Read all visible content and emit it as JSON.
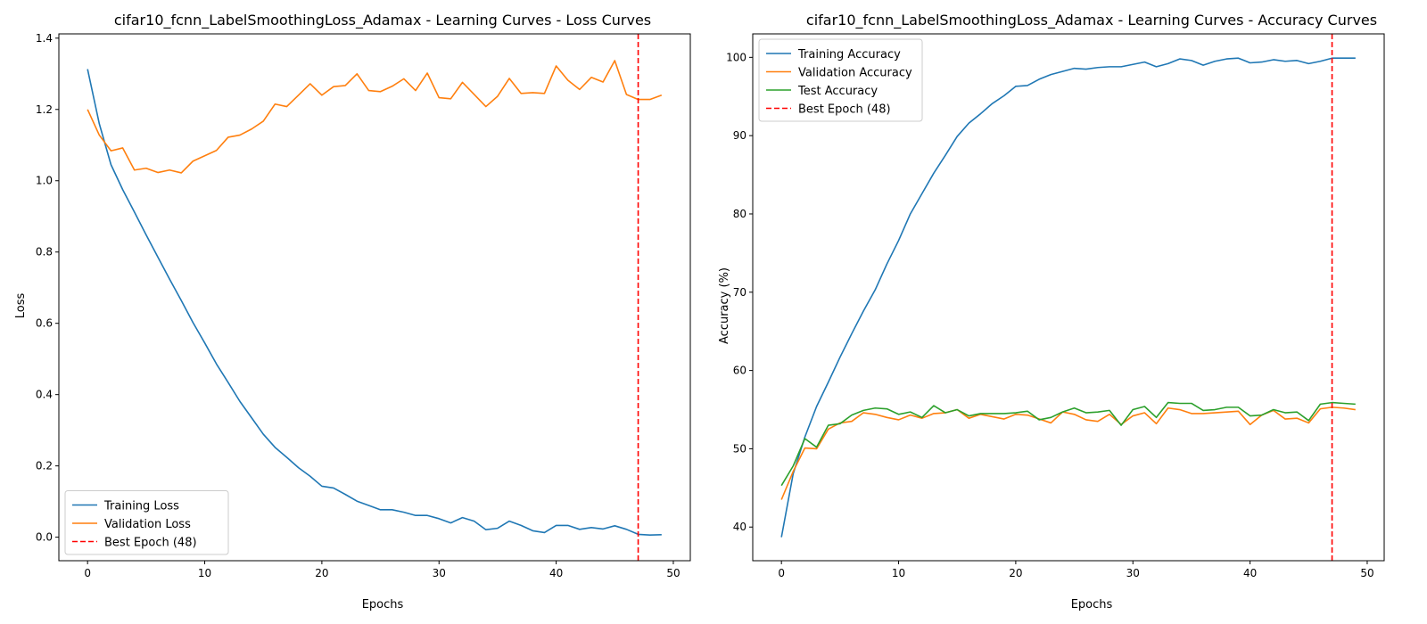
{
  "chart_data": [
    {
      "type": "line",
      "title": "cifar10_fcnn_LabelSmoothingLoss_Adamax - Learning Curves - Loss Curves",
      "xlabel": "Epochs",
      "ylabel": "Loss",
      "xlim": [
        -2.45,
        51.45
      ],
      "ylim": [
        -0.066,
        1.412
      ],
      "xticks": [
        0,
        10,
        20,
        30,
        40,
        50
      ],
      "yticks": [
        0.0,
        0.2,
        0.4,
        0.6,
        0.8,
        1.0,
        1.2,
        1.4
      ],
      "ytick_labels": [
        "0.0",
        "0.2",
        "0.4",
        "0.6",
        "0.8",
        "1.0",
        "1.2",
        "1.4"
      ],
      "grid": false,
      "legend_position": "lower-left",
      "x": [
        0,
        1,
        2,
        3,
        4,
        5,
        6,
        7,
        8,
        9,
        10,
        11,
        12,
        13,
        14,
        15,
        16,
        17,
        18,
        19,
        20,
        21,
        22,
        23,
        24,
        25,
        26,
        27,
        28,
        29,
        30,
        31,
        32,
        33,
        34,
        35,
        36,
        37,
        38,
        39,
        40,
        41,
        42,
        43,
        44,
        45,
        46,
        47,
        48,
        49
      ],
      "series": [
        {
          "name": "Training Loss",
          "color": "#1f77b4",
          "values": [
            1.313,
            1.16,
            1.045,
            0.975,
            0.912,
            0.848,
            0.786,
            0.724,
            0.664,
            0.602,
            0.545,
            0.486,
            0.434,
            0.381,
            0.335,
            0.289,
            0.252,
            0.224,
            0.195,
            0.171,
            0.143,
            0.138,
            0.12,
            0.101,
            0.089,
            0.077,
            0.077,
            0.07,
            0.061,
            0.061,
            0.052,
            0.04,
            0.055,
            0.045,
            0.021,
            0.025,
            0.045,
            0.033,
            0.018,
            0.013,
            0.033,
            0.033,
            0.022,
            0.027,
            0.023,
            0.032,
            0.022,
            0.008,
            0.006,
            0.007
          ]
        },
        {
          "name": "Validation Loss",
          "color": "#ff7f0e",
          "values": [
            1.2,
            1.128,
            1.084,
            1.092,
            1.03,
            1.035,
            1.023,
            1.03,
            1.022,
            1.055,
            1.07,
            1.085,
            1.122,
            1.128,
            1.145,
            1.167,
            1.215,
            1.208,
            1.24,
            1.272,
            1.24,
            1.264,
            1.267,
            1.3,
            1.253,
            1.25,
            1.265,
            1.286,
            1.253,
            1.302,
            1.233,
            1.23,
            1.276,
            1.242,
            1.208,
            1.237,
            1.287,
            1.245,
            1.247,
            1.245,
            1.322,
            1.282,
            1.256,
            1.29,
            1.277,
            1.337,
            1.242,
            1.228,
            1.228,
            1.24
          ]
        }
      ],
      "vline": {
        "name": "Best Epoch (48)",
        "x": 47,
        "color": "#ff0000",
        "style": "dashed"
      }
    },
    {
      "type": "line",
      "title": "cifar10_fcnn_LabelSmoothingLoss_Adamax - Learning Curves - Accuracy Curves",
      "xlabel": "Epochs",
      "ylabel": "Accuracy (%)",
      "xlim": [
        -2.45,
        51.45
      ],
      "ylim": [
        35.7,
        103.0
      ],
      "xticks": [
        0,
        10,
        20,
        30,
        40,
        50
      ],
      "yticks": [
        40,
        50,
        60,
        70,
        80,
        90,
        100
      ],
      "ytick_labels": [
        "40",
        "50",
        "60",
        "70",
        "80",
        "90",
        "100"
      ],
      "grid": false,
      "legend_position": "upper-left",
      "x": [
        0,
        1,
        2,
        3,
        4,
        5,
        6,
        7,
        8,
        9,
        10,
        11,
        12,
        13,
        14,
        15,
        16,
        17,
        18,
        19,
        20,
        21,
        22,
        23,
        24,
        25,
        26,
        27,
        28,
        29,
        30,
        31,
        32,
        33,
        34,
        35,
        36,
        37,
        38,
        39,
        40,
        41,
        42,
        43,
        44,
        45,
        46,
        47,
        48,
        49
      ],
      "series": [
        {
          "name": "Training Accuracy",
          "color": "#1f77b4",
          "values": [
            38.7,
            46.8,
            51.5,
            55.4,
            58.5,
            61.7,
            64.7,
            67.6,
            70.3,
            73.6,
            76.6,
            80.0,
            82.6,
            85.2,
            87.5,
            89.9,
            91.6,
            92.8,
            94.1,
            95.1,
            96.3,
            96.4,
            97.2,
            97.8,
            98.2,
            98.6,
            98.5,
            98.7,
            98.8,
            98.8,
            99.1,
            99.4,
            98.8,
            99.2,
            99.8,
            99.6,
            99.0,
            99.5,
            99.8,
            99.9,
            99.3,
            99.4,
            99.7,
            99.5,
            99.6,
            99.2,
            99.5,
            99.9,
            99.9,
            99.9
          ]
        },
        {
          "name": "Validation Accuracy",
          "color": "#ff7f0e",
          "values": [
            43.5,
            47.1,
            50.1,
            50.0,
            52.5,
            53.3,
            53.5,
            54.6,
            54.4,
            54.0,
            53.7,
            54.3,
            53.9,
            54.5,
            54.6,
            55.0,
            53.9,
            54.4,
            54.1,
            53.8,
            54.4,
            54.3,
            53.8,
            53.3,
            54.7,
            54.4,
            53.7,
            53.5,
            54.4,
            53.1,
            54.2,
            54.6,
            53.2,
            55.2,
            55.0,
            54.5,
            54.5,
            54.6,
            54.7,
            54.8,
            53.1,
            54.3,
            54.9,
            53.8,
            53.9,
            53.3,
            55.1,
            55.3,
            55.2,
            55.0
          ]
        },
        {
          "name": "Test Accuracy",
          "color": "#2ca02c",
          "values": [
            45.3,
            47.8,
            51.3,
            50.2,
            53.0,
            53.2,
            54.3,
            54.9,
            55.2,
            55.1,
            54.4,
            54.7,
            54.0,
            55.5,
            54.6,
            55.0,
            54.2,
            54.5,
            54.5,
            54.5,
            54.6,
            54.8,
            53.7,
            54.0,
            54.7,
            55.2,
            54.6,
            54.7,
            54.9,
            53.0,
            55.0,
            55.4,
            54.0,
            55.9,
            55.8,
            55.8,
            54.9,
            55.0,
            55.3,
            55.3,
            54.2,
            54.3,
            55.0,
            54.6,
            54.7,
            53.6,
            55.7,
            55.9,
            55.8,
            55.7
          ]
        }
      ],
      "vline": {
        "name": "Best Epoch (48)",
        "x": 47,
        "color": "#ff0000",
        "style": "dashed"
      }
    }
  ]
}
